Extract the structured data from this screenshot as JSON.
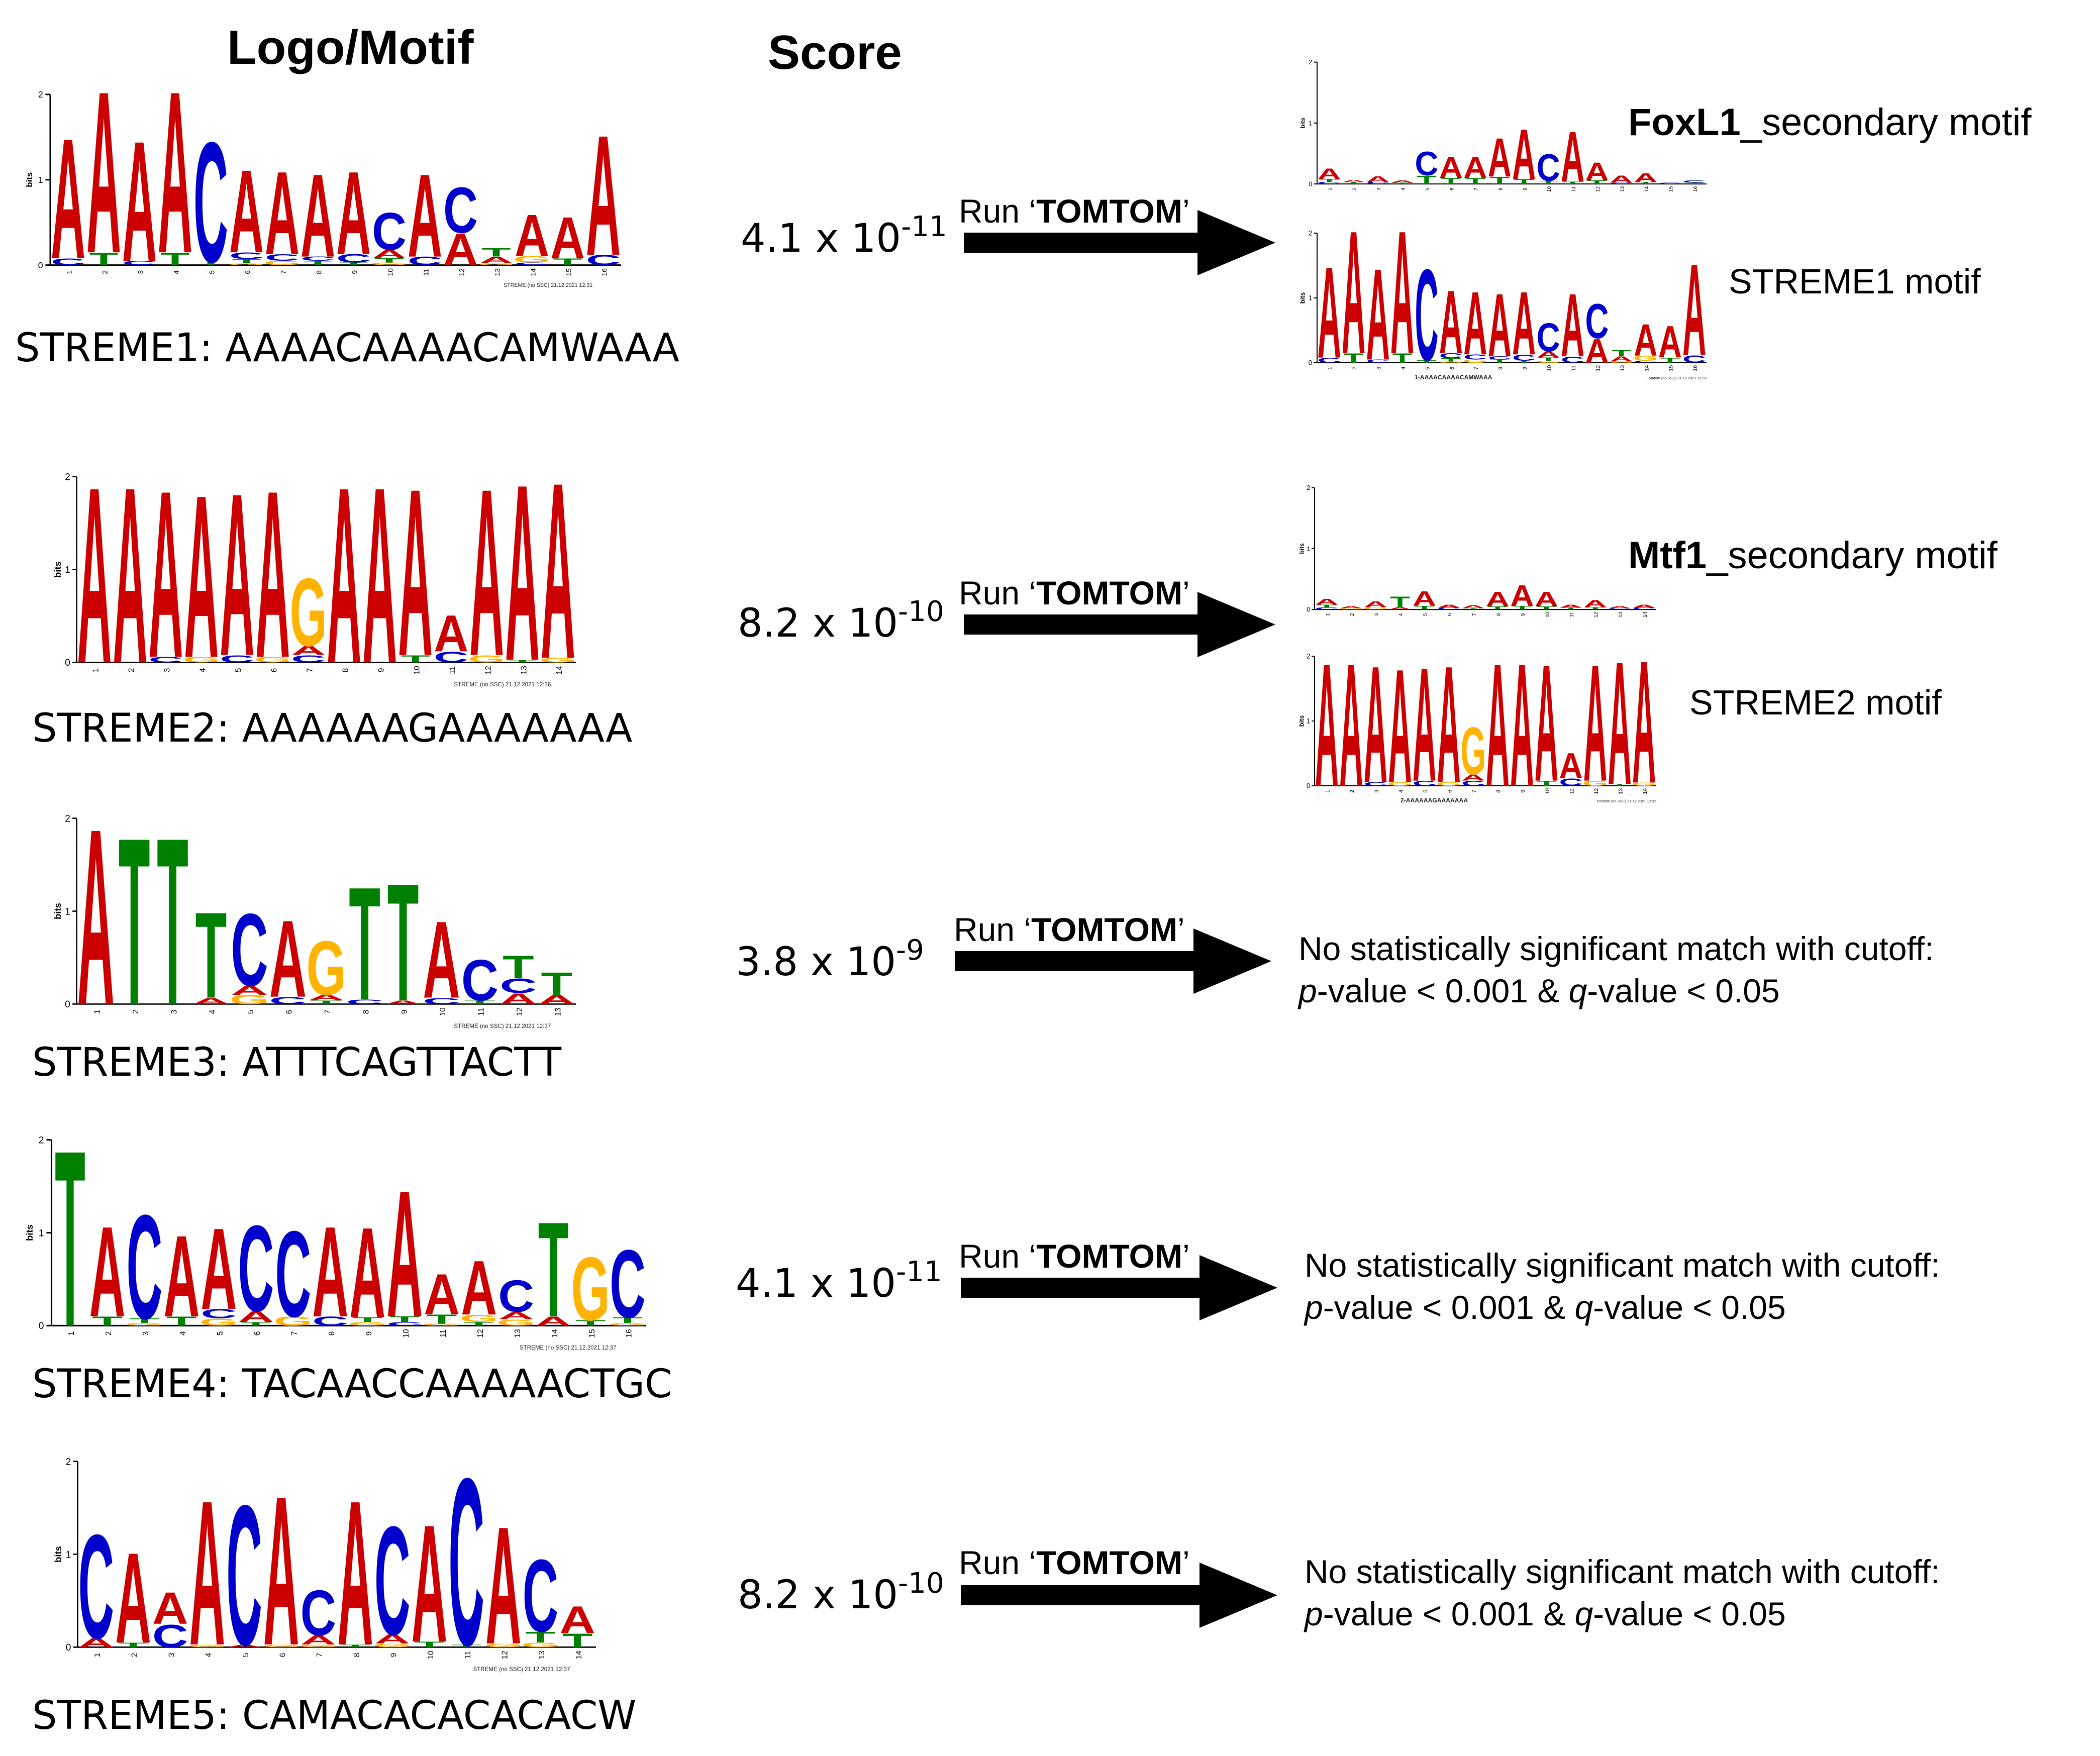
{
  "headers": {
    "logo": "Logo/Motif",
    "score": "Score"
  },
  "run_label": {
    "prefix": "Run ‘",
    "tool": "TOMTOM",
    "suffix": "’"
  },
  "logo_texts": {
    "ylabel": "bits",
    "t0": "0",
    "t1": "1",
    "t2": "2"
  },
  "rows": [
    {
      "sequence_label": "STREME1: AAAACAAAACAMWAAA",
      "score_base": "4.1 x 10",
      "score_exp": "-11",
      "logo_caption": "STREME (no SSC) 21.12.2021 12:31",
      "match": {
        "type": "match",
        "name": "FoxL1",
        "desc": "_secondary motif",
        "query_label": "STREME1 motif",
        "query_caption": "1-AAAACAAAACAMWAAA",
        "query_stamp": "Tomtom (no SSC) 21.12.2021 12:33"
      }
    },
    {
      "sequence_label": "STREME2: AAAAAAGAAAAAAA",
      "score_base": "8.2 x 10",
      "score_exp": "-10",
      "logo_caption": "STREME (no SSC) 21.12.2021 12:36",
      "match": {
        "type": "match",
        "name": "Mtf1",
        "desc": "_secondary motif",
        "query_label": "STREME2 motif",
        "query_caption": "2-AAAAAAGAAAAAAA",
        "query_stamp": "Tomtom (no SSC) 21.12.2021 12:33"
      }
    },
    {
      "sequence_label": "STREME3: ATTTCAGTTACTT",
      "score_base": "3.8 x 10",
      "score_exp": "-9",
      "logo_caption": "STREME (no SSC) 21.12.2021 12:37",
      "match": {
        "type": "none",
        "line1": "No statistically significant match with cutoff:",
        "p": "p",
        "p_rest": "-value < 0.001 & ",
        "q": "q",
        "q_rest": "-value < 0.05"
      }
    },
    {
      "sequence_label": "STREME4: TACAACCAAAAACTGC",
      "score_base": "4.1 x 10",
      "score_exp": "-11",
      "logo_caption": "STREME (no SSC) 21.12.2021 12:37",
      "match": {
        "type": "none",
        "line1": "No statistically significant match with cutoff:",
        "p": "p",
        "p_rest": "-value < 0.001 & ",
        "q": "q",
        "q_rest": "-value < 0.05"
      }
    },
    {
      "sequence_label": "STREME5: CAMACACACACACW",
      "score_base": "8.2 x 10",
      "score_exp": "-10",
      "logo_caption": "STREME (no SSC) 21.12.2021 12:37",
      "match": {
        "type": "none",
        "line1": "No statistically significant match with cutoff:",
        "p": "p",
        "p_rest": "-value < 0.001 & ",
        "q": "q",
        "q_rest": "-value < 0.05"
      }
    }
  ],
  "colors": {
    "A": "#cc0000",
    "C": "#0000cc",
    "G": "#ffb300",
    "T": "#008000"
  },
  "logos": {
    "streme1": [
      [
        [
          "A",
          1.45
        ],
        [
          "C",
          0.08
        ]
      ],
      [
        [
          "A",
          1.95
        ],
        [
          "T",
          0.15
        ]
      ],
      [
        [
          "A",
          1.45
        ],
        [
          "C",
          0.05
        ]
      ],
      [
        [
          "A",
          1.95
        ],
        [
          "T",
          0.15
        ]
      ],
      [
        [
          "C",
          1.45
        ],
        [
          "T",
          0.04
        ]
      ],
      [
        [
          "A",
          1.0
        ],
        [
          "T",
          0.05
        ],
        [
          "C",
          0.08
        ],
        [
          "G",
          0.02
        ]
      ],
      [
        [
          "A",
          1.0
        ],
        [
          "G",
          0.05
        ],
        [
          "C",
          0.08
        ]
      ],
      [
        [
          "A",
          1.0
        ],
        [
          "T",
          0.05
        ],
        [
          "C",
          0.05
        ]
      ],
      [
        [
          "A",
          1.0
        ],
        [
          "C",
          0.1
        ],
        [
          "T",
          0.03
        ]
      ],
      [
        [
          "C",
          0.45
        ],
        [
          "A",
          0.1
        ],
        [
          "T",
          0.05
        ],
        [
          "G",
          0.03
        ]
      ],
      [
        [
          "A",
          1.0
        ],
        [
          "C",
          0.1
        ]
      ],
      [
        [
          "C",
          0.55
        ],
        [
          "A",
          0.38
        ]
      ],
      [
        [
          "A",
          0.08
        ],
        [
          "T",
          0.1
        ],
        [
          "G",
          0.02
        ]
      ],
      [
        [
          "A",
          0.5
        ],
        [
          "G",
          0.08
        ],
        [
          "C",
          0.03
        ]
      ],
      [
        [
          "A",
          0.5
        ],
        [
          "T",
          0.08
        ]
      ],
      [
        [
          "A",
          1.45
        ],
        [
          "C",
          0.12
        ]
      ]
    ],
    "streme2": [
      [
        [
          "A",
          1.95
        ]
      ],
      [
        [
          "A",
          1.95
        ]
      ],
      [
        [
          "A",
          1.85
        ],
        [
          "C",
          0.06
        ]
      ],
      [
        [
          "A",
          1.8
        ],
        [
          "G",
          0.06
        ]
      ],
      [
        [
          "A",
          1.8
        ],
        [
          "C",
          0.08
        ]
      ],
      [
        [
          "A",
          1.85
        ],
        [
          "G",
          0.06
        ]
      ],
      [
        [
          "G",
          0.75
        ],
        [
          "A",
          0.1
        ],
        [
          "C",
          0.08
        ]
      ],
      [
        [
          "A",
          1.95
        ]
      ],
      [
        [
          "A",
          1.95
        ]
      ],
      [
        [
          "A",
          1.85
        ],
        [
          "T",
          0.08
        ]
      ],
      [
        [
          "A",
          0.4
        ],
        [
          "C",
          0.12
        ]
      ],
      [
        [
          "A",
          1.85
        ],
        [
          "G",
          0.08
        ]
      ],
      [
        [
          "A",
          1.95
        ],
        [
          "T",
          0.03
        ]
      ],
      [
        [
          "A",
          1.95
        ],
        [
          "G",
          0.05
        ]
      ]
    ],
    "streme3": [
      [
        [
          "A",
          1.95
        ]
      ],
      [
        [
          "T",
          1.85
        ]
      ],
      [
        [
          "T",
          1.85
        ]
      ],
      [
        [
          "T",
          0.95
        ],
        [
          "A",
          0.07
        ]
      ],
      [
        [
          "C",
          0.8
        ],
        [
          "G",
          0.1
        ],
        [
          "A",
          0.1
        ]
      ],
      [
        [
          "A",
          0.85
        ],
        [
          "C",
          0.08
        ]
      ],
      [
        [
          "G",
          0.6
        ],
        [
          "T",
          0.04
        ],
        [
          "A",
          0.06
        ]
      ],
      [
        [
          "T",
          1.25
        ],
        [
          "C",
          0.05
        ]
      ],
      [
        [
          "T",
          1.3
        ],
        [
          "A",
          0.04
        ]
      ],
      [
        [
          "A",
          0.85
        ],
        [
          "C",
          0.07
        ]
      ],
      [
        [
          "C",
          0.45
        ],
        [
          "T",
          0.04
        ]
      ],
      [
        [
          "T",
          0.25
        ],
        [
          "C",
          0.16
        ],
        [
          "A",
          0.12
        ]
      ],
      [
        [
          "T",
          0.25
        ],
        [
          "A",
          0.1
        ]
      ]
    ],
    "streme4": [
      [
        [
          "T",
          1.95
        ]
      ],
      [
        [
          "A",
          1.0
        ],
        [
          "T",
          0.1
        ]
      ],
      [
        [
          "C",
          1.15
        ],
        [
          "G",
          0.03
        ],
        [
          "T",
          0.05
        ]
      ],
      [
        [
          "A",
          0.9
        ],
        [
          "T",
          0.1
        ]
      ],
      [
        [
          "A",
          0.9
        ],
        [
          "C",
          0.1
        ],
        [
          "G",
          0.08
        ]
      ],
      [
        [
          "C",
          0.95
        ],
        [
          "T",
          0.04
        ],
        [
          "A",
          0.12
        ]
      ],
      [
        [
          "C",
          0.95
        ],
        [
          "G",
          0.1
        ]
      ],
      [
        [
          "A",
          1.0
        ],
        [
          "C",
          0.1
        ]
      ],
      [
        [
          "A",
          1.0
        ],
        [
          "G",
          0.04
        ],
        [
          "T",
          0.05
        ]
      ],
      [
        [
          "A",
          1.4
        ],
        [
          "C",
          0.04
        ],
        [
          "T",
          0.06
        ]
      ],
      [
        [
          "A",
          0.45
        ],
        [
          "T",
          0.1
        ],
        [
          "G",
          0.02
        ]
      ],
      [
        [
          "A",
          0.6
        ],
        [
          "G",
          0.08
        ],
        [
          "T",
          0.04
        ]
      ],
      [
        [
          "C",
          0.35
        ],
        [
          "A",
          0.08
        ],
        [
          "G",
          0.07
        ]
      ],
      [
        [
          "T",
          1.05
        ],
        [
          "A",
          0.1
        ]
      ],
      [
        [
          "G",
          0.7
        ],
        [
          "T",
          0.06
        ]
      ],
      [
        [
          "C",
          0.75
        ],
        [
          "T",
          0.06
        ],
        [
          "G",
          0.03
        ]
      ]
    ],
    "streme5": [
      [
        [
          "C",
          1.15
        ],
        [
          "A",
          0.1
        ]
      ],
      [
        [
          "A",
          1.0
        ],
        [
          "T",
          0.05
        ]
      ],
      [
        [
          "A",
          0.35
        ],
        [
          "C",
          0.25
        ]
      ],
      [
        [
          "A",
          1.6
        ],
        [
          "G",
          0.03
        ]
      ],
      [
        [
          "C",
          1.55
        ],
        [
          "A",
          0.03
        ]
      ],
      [
        [
          "A",
          1.65
        ],
        [
          "G",
          0.03
        ]
      ],
      [
        [
          "C",
          0.5
        ],
        [
          "A",
          0.1
        ],
        [
          "G",
          0.03
        ]
      ],
      [
        [
          "A",
          1.6
        ],
        [
          "T",
          0.03
        ]
      ],
      [
        [
          "C",
          1.2
        ],
        [
          "A",
          0.1
        ],
        [
          "G",
          0.04
        ]
      ],
      [
        [
          "A",
          1.3
        ],
        [
          "T",
          0.06
        ]
      ],
      [
        [
          "C",
          1.85
        ],
        [
          "T",
          0.03
        ]
      ],
      [
        [
          "A",
          1.3
        ],
        [
          "G",
          0.04
        ]
      ],
      [
        [
          "C",
          0.8
        ],
        [
          "T",
          0.12
        ],
        [
          "G",
          0.05
        ]
      ],
      [
        [
          "A",
          0.3
        ],
        [
          "T",
          0.15
        ]
      ]
    ],
    "foxl1": [
      [
        [
          "A",
          0.18
        ],
        [
          "T",
          0.05
        ],
        [
          "C",
          0.03
        ]
      ],
      [
        [
          "A",
          0.04
        ],
        [
          "T",
          0.03
        ]
      ],
      [
        [
          "A",
          0.1
        ],
        [
          "C",
          0.03
        ]
      ],
      [
        [
          "A",
          0.04
        ],
        [
          "T",
          0.02
        ]
      ],
      [
        [
          "C",
          0.4
        ],
        [
          "T",
          0.14
        ]
      ],
      [
        [
          "A",
          0.35
        ],
        [
          "T",
          0.1
        ]
      ],
      [
        [
          "A",
          0.35
        ],
        [
          "T",
          0.1
        ]
      ],
      [
        [
          "A",
          0.65
        ],
        [
          "T",
          0.12
        ]
      ],
      [
        [
          "A",
          0.85
        ],
        [
          "T",
          0.08
        ]
      ],
      [
        [
          "C",
          0.45
        ],
        [
          "T",
          0.05
        ]
      ],
      [
        [
          "A",
          0.85
        ],
        [
          "T",
          0.04
        ]
      ],
      [
        [
          "A",
          0.3
        ],
        [
          "T",
          0.06
        ]
      ],
      [
        [
          "A",
          0.12
        ],
        [
          "C",
          0.02
        ]
      ],
      [
        [
          "A",
          0.15
        ],
        [
          "T",
          0.03
        ]
      ],
      [
        [
          "C",
          0.02
        ]
      ],
      [
        [
          "C",
          0.04
        ],
        [
          "T",
          0.02
        ]
      ]
    ],
    "mtf1": [
      [
        [
          "A",
          0.1
        ],
        [
          "T",
          0.05
        ],
        [
          "C",
          0.03
        ]
      ],
      [
        [
          "A",
          0.03
        ],
        [
          "G",
          0.02
        ]
      ],
      [
        [
          "A",
          0.1
        ],
        [
          "G",
          0.04
        ]
      ],
      [
        [
          "T",
          0.18
        ],
        [
          "A",
          0.04
        ]
      ],
      [
        [
          "A",
          0.25
        ],
        [
          "T",
          0.06
        ]
      ],
      [
        [
          "A",
          0.05
        ],
        [
          "C",
          0.03
        ]
      ],
      [
        [
          "A",
          0.05
        ],
        [
          "T",
          0.02
        ]
      ],
      [
        [
          "A",
          0.25
        ],
        [
          "T",
          0.05
        ]
      ],
      [
        [
          "A",
          0.35
        ],
        [
          "T",
          0.06
        ]
      ],
      [
        [
          "A",
          0.25
        ],
        [
          "T",
          0.05
        ]
      ],
      [
        [
          "A",
          0.05
        ],
        [
          "T",
          0.03
        ]
      ],
      [
        [
          "A",
          0.12
        ],
        [
          "T",
          0.04
        ]
      ],
      [
        [
          "A",
          0.03
        ],
        [
          "C",
          0.02
        ]
      ],
      [
        [
          "A",
          0.05
        ],
        [
          "C",
          0.03
        ]
      ]
    ]
  }
}
